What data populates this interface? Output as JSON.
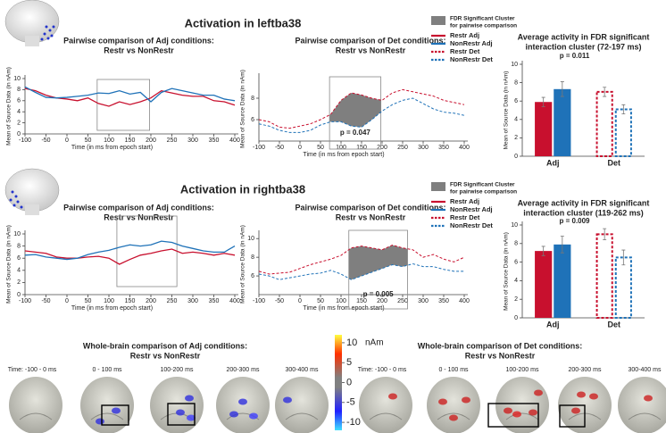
{
  "section_titles": [
    "Activation in leftba38",
    "Activation in rightba38"
  ],
  "chart_data": [
    {
      "type": "line",
      "title": [
        "Pairwise comparison of Adj conditions:",
        "Restr vs NonRestr"
      ],
      "x_label": "Time (in ms from epoch start)",
      "y_label": "Mean of Source Data (in nAm)",
      "x": [
        -100,
        -75,
        -50,
        -25,
        0,
        25,
        50,
        75,
        100,
        125,
        150,
        175,
        200,
        225,
        250,
        275,
        300,
        325,
        350,
        375,
        400
      ],
      "xlim": [
        -100,
        400
      ],
      "xticks": [
        -100,
        -50,
        0,
        50,
        100,
        150,
        200,
        250,
        300,
        350,
        400
      ],
      "ylim": [
        0,
        10
      ],
      "yticks": [
        0,
        2,
        4,
        6,
        8,
        10
      ],
      "cluster": [
        72,
        197
      ],
      "series": [
        {
          "name": "Restr Adj",
          "color": "#c8102e",
          "line_style": "solid",
          "values": [
            8.2,
            7.8,
            7.0,
            6.5,
            6.3,
            6.0,
            6.5,
            5.5,
            5.0,
            5.8,
            5.3,
            5.8,
            6.5,
            7.8,
            7.4,
            7.0,
            6.8,
            6.8,
            6.0,
            5.8,
            5.2
          ]
        },
        {
          "name": "NonRestr Adj",
          "color": "#1f72b8",
          "line_style": "solid",
          "values": [
            8.5,
            7.5,
            6.6,
            6.5,
            6.6,
            6.8,
            7.0,
            7.4,
            7.3,
            7.8,
            7.2,
            7.5,
            5.8,
            7.5,
            8.2,
            7.8,
            7.4,
            7.0,
            7.0,
            6.3,
            6.0
          ]
        }
      ]
    },
    {
      "type": "line",
      "title": [
        "Pairwise comparison of Det conditions:",
        "Restr vs NonRestr"
      ],
      "x_label": "Time (in ms from epoch start)",
      "y_label": "Mean of Source Data (in nAm)",
      "x": [
        -100,
        -75,
        -50,
        -25,
        0,
        25,
        50,
        75,
        100,
        125,
        150,
        175,
        200,
        225,
        250,
        275,
        300,
        325,
        350,
        375,
        400
      ],
      "xlim": [
        -100,
        400
      ],
      "xticks": [
        -100,
        -50,
        0,
        50,
        100,
        150,
        200,
        250,
        300,
        350,
        400
      ],
      "ylim": [
        4,
        10
      ],
      "yticks": [
        6,
        8
      ],
      "cluster": [
        72,
        197
      ],
      "cluster_label": [
        "FDR Significant Cluster",
        "for pairwise comparison"
      ],
      "cluster_color": "#7f7f7f",
      "annotation": "p = 0.047",
      "series": [
        {
          "name": "Restr Det",
          "color": "#c8102e",
          "line_style": "dashed",
          "values": [
            6.0,
            5.8,
            5.3,
            5.2,
            5.4,
            5.6,
            6.0,
            6.5,
            7.8,
            8.5,
            8.3,
            8.0,
            7.8,
            8.5,
            8.8,
            8.6,
            8.4,
            8.2,
            7.8,
            7.6,
            7.4
          ]
        },
        {
          "name": "NonRestr Det",
          "color": "#1f72b8",
          "line_style": "dashed",
          "values": [
            5.6,
            5.4,
            5.0,
            4.8,
            4.8,
            5.0,
            5.5,
            5.8,
            5.8,
            5.4,
            5.3,
            6.0,
            6.8,
            7.4,
            7.8,
            8.0,
            7.5,
            7.0,
            6.7,
            6.6,
            6.4
          ]
        }
      ]
    },
    {
      "type": "bar",
      "title": [
        "Average activity in FDR significant",
        "interaction cluster (72-197 ms)"
      ],
      "annotation": "p = 0.011",
      "y_label": "Mean of Source Data (in nAm)",
      "categories": [
        "Adj",
        "Det"
      ],
      "outline_only": [
        false,
        true
      ],
      "ylim": [
        0,
        10
      ],
      "yticks": [
        0,
        2,
        4,
        6,
        8,
        10
      ],
      "series": [
        {
          "color": "#c8102e",
          "values": [
            5.9,
            7.0
          ],
          "errors": [
            0.5,
            0.5
          ]
        },
        {
          "color": "#1f72b8",
          "values": [
            7.3,
            5.1
          ],
          "errors": [
            0.8,
            0.5
          ]
        }
      ]
    },
    {
      "type": "line",
      "title": [
        "Pairwise comparison of Adj conditions:",
        "Restr vs NonRestr"
      ],
      "x_label": "Time (in ms from epoch start)",
      "y_label": "Mean of Source Data (in nAm)",
      "x": [
        -100,
        -75,
        -50,
        -25,
        0,
        25,
        50,
        75,
        100,
        125,
        150,
        175,
        200,
        225,
        250,
        275,
        300,
        325,
        350,
        375,
        400
      ],
      "xlim": [
        -100,
        400
      ],
      "xticks": [
        -100,
        -50,
        0,
        50,
        100,
        150,
        200,
        250,
        300,
        350,
        400
      ],
      "ylim": [
        0,
        10
      ],
      "yticks": [
        0,
        2,
        4,
        6,
        8,
        10
      ],
      "cluster": [
        119,
        262
      ],
      "series": [
        {
          "name": "Restr Adj",
          "color": "#c8102e",
          "line_style": "solid",
          "values": [
            7.2,
            7.0,
            6.8,
            6.2,
            6.0,
            6.0,
            6.2,
            6.3,
            6.0,
            5.0,
            5.8,
            6.5,
            6.8,
            7.2,
            7.5,
            6.8,
            7.0,
            6.8,
            6.5,
            6.8,
            6.5
          ]
        },
        {
          "name": "NonRestr Adj",
          "color": "#1f72b8",
          "line_style": "solid",
          "values": [
            6.5,
            6.6,
            6.2,
            6.0,
            5.8,
            6.0,
            6.6,
            7.0,
            7.3,
            7.8,
            8.2,
            8.0,
            8.2,
            8.8,
            8.6,
            8.0,
            7.6,
            7.2,
            7.0,
            7.0,
            8.0
          ]
        }
      ]
    },
    {
      "type": "line",
      "title": [
        "Pairwise comparison of Det conditions:",
        "Restr vs NonRestr"
      ],
      "x_label": "Time (in ms from epoch start)",
      "y_label": "Mean of Source Data (in nAm)",
      "x": [
        -100,
        -75,
        -50,
        -25,
        0,
        25,
        50,
        75,
        100,
        125,
        150,
        175,
        200,
        225,
        250,
        275,
        300,
        325,
        350,
        375,
        400
      ],
      "xlim": [
        -100,
        400
      ],
      "xticks": [
        -100,
        -50,
        0,
        50,
        100,
        150,
        200,
        250,
        300,
        350,
        400
      ],
      "ylim": [
        4,
        10.5
      ],
      "yticks": [
        6,
        8,
        10
      ],
      "cluster": [
        119,
        262
      ],
      "cluster_label": [
        "FDR Significant Cluster",
        "for pairwise comparison"
      ],
      "cluster_color": "#7f7f7f",
      "annotation": "p = 0.005",
      "series": [
        {
          "name": "Restr Det",
          "color": "#c8102e",
          "line_style": "dashed",
          "values": [
            6.5,
            6.2,
            6.3,
            6.4,
            6.8,
            7.2,
            7.5,
            7.8,
            8.2,
            9.0,
            9.2,
            9.0,
            8.8,
            9.3,
            9.0,
            8.8,
            8.0,
            8.3,
            7.8,
            7.5,
            8.0
          ]
        },
        {
          "name": "NonRestr Det",
          "color": "#1f72b8",
          "line_style": "dashed",
          "values": [
            6.2,
            6.0,
            5.6,
            5.8,
            6.0,
            6.2,
            6.3,
            6.6,
            6.2,
            5.6,
            6.0,
            6.4,
            6.8,
            7.2,
            7.0,
            7.3,
            7.0,
            7.0,
            6.7,
            6.5,
            6.5
          ]
        }
      ]
    },
    {
      "type": "bar",
      "title": [
        "Average activity in FDR significant",
        "interaction cluster (119-262 ms)"
      ],
      "annotation": "p = 0.009",
      "y_label": "Mean of Source Data (in nAm)",
      "categories": [
        "Adj",
        "Det"
      ],
      "outline_only": [
        false,
        true
      ],
      "ylim": [
        0,
        10
      ],
      "yticks": [
        0,
        2,
        4,
        6,
        8,
        10
      ],
      "series": [
        {
          "color": "#c8102e",
          "values": [
            7.2,
            9.0
          ],
          "errors": [
            0.5,
            0.6
          ]
        },
        {
          "color": "#1f72b8",
          "values": [
            7.9,
            6.5
          ],
          "errors": [
            0.9,
            0.8
          ]
        }
      ]
    }
  ],
  "brain_maps": [
    {
      "title": [
        "Whole-brain comparison of Adj conditions:",
        "Restr vs NonRestr"
      ],
      "times": [
        "Time: -100 - 0 ms",
        "0 - 100 ms",
        "100-200 ms",
        "200-300 ms",
        "300-400 ms"
      ]
    },
    {
      "title": [
        "Whole-brain comparison of Det conditions:",
        "Restr vs NonRestr"
      ],
      "times": [
        "Time: -100 - 0 ms",
        "0 - 100 ms",
        "100-200 ms",
        "200-300 ms",
        "300-400 ms"
      ]
    }
  ],
  "colorbar": {
    "label": "nAm",
    "lim": [
      -12,
      12
    ],
    "ticks": [
      10,
      5,
      0,
      -5,
      -10
    ]
  }
}
